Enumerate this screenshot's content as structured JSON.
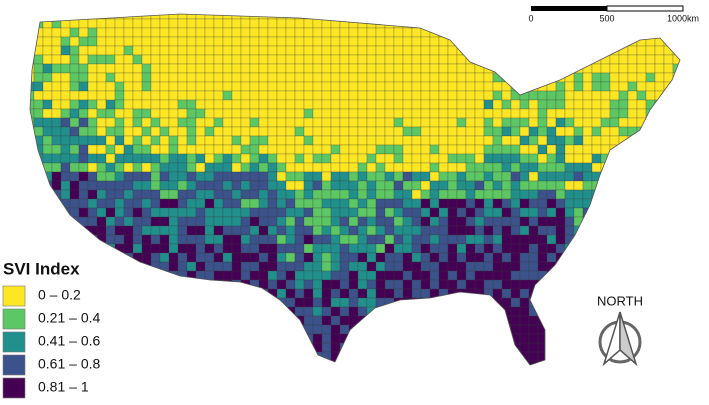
{
  "legend": {
    "title": "SVI Index",
    "items": [
      {
        "label": "0 – 0.2",
        "color": "#fde725"
      },
      {
        "label": "0.21 – 0.4",
        "color": "#5dc863"
      },
      {
        "label": "0.41 – 0.6",
        "color": "#21908d"
      },
      {
        "label": "0.61 – 0.8",
        "color": "#3b528b"
      },
      {
        "label": "0.81 – 1",
        "color": "#440154"
      }
    ]
  },
  "scale_bar": {
    "labels": [
      "0",
      "500",
      "1000km"
    ]
  },
  "north_arrow": {
    "label": "NORTH"
  }
}
